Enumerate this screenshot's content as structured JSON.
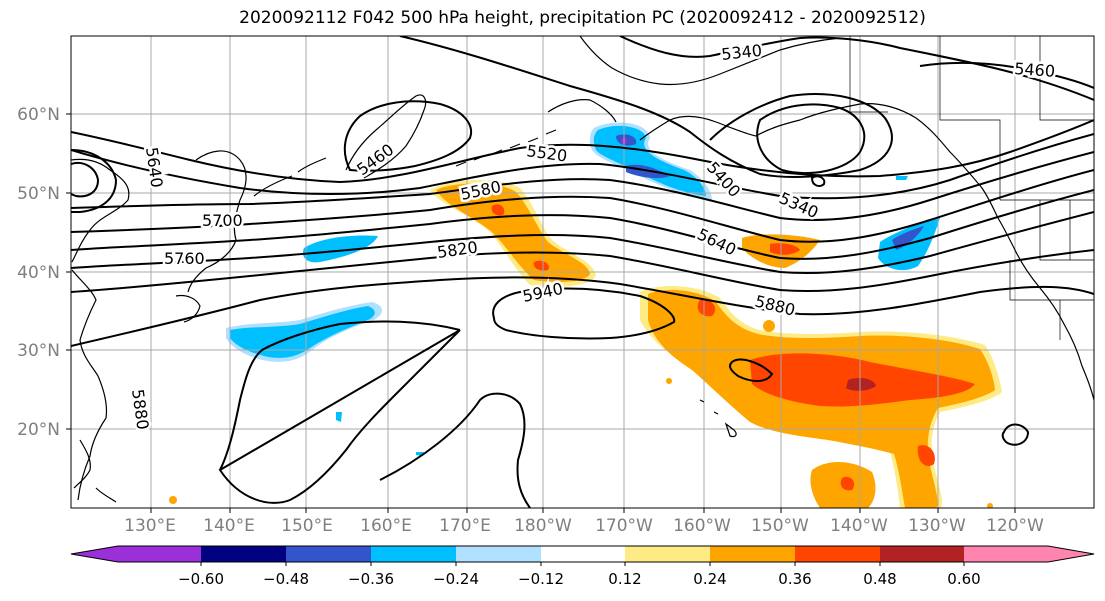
{
  "title": "2020092112 F042 500 hPa height, precipitation PC (2020092412 - 2020092512)",
  "lat_labels": [
    "60°N",
    "50°N",
    "40°N",
    "30°N",
    "20°N"
  ],
  "lon_labels": [
    "130°E",
    "140°E",
    "150°E",
    "160°E",
    "170°E",
    "180°W",
    "170°W",
    "160°W",
    "150°W",
    "140°W",
    "130°W",
    "120°W"
  ],
  "colorbar": {
    "ticks": [
      "−0.60",
      "−0.48",
      "−0.36",
      "−0.24",
      "−0.12",
      "0.12",
      "0.24",
      "0.36",
      "0.48",
      "0.60"
    ],
    "colors": [
      "#9b30d9",
      "#000080",
      "#3355cc",
      "#00bfff",
      "#b0e0ff",
      "#ffffff",
      "#ffeb85",
      "#ffa500",
      "#ff4500",
      "#b22222",
      "#ff85b0"
    ]
  },
  "contour_labels": [
    "5340",
    "5460",
    "5460",
    "5520",
    "5400",
    "5340",
    "5580",
    "5640",
    "5640",
    "5700",
    "5760",
    "5820",
    "5940",
    "5880",
    "5880"
  ],
  "fill_colors": {
    "light_orange": "#ffeb85",
    "orange": "#ffa500",
    "red_orange": "#ff4500",
    "dark_red": "#b22222",
    "light_blue": "#b0e0ff",
    "cyan": "#00bfff",
    "blue": "#3355cc",
    "purple": "#9b30d9"
  }
}
